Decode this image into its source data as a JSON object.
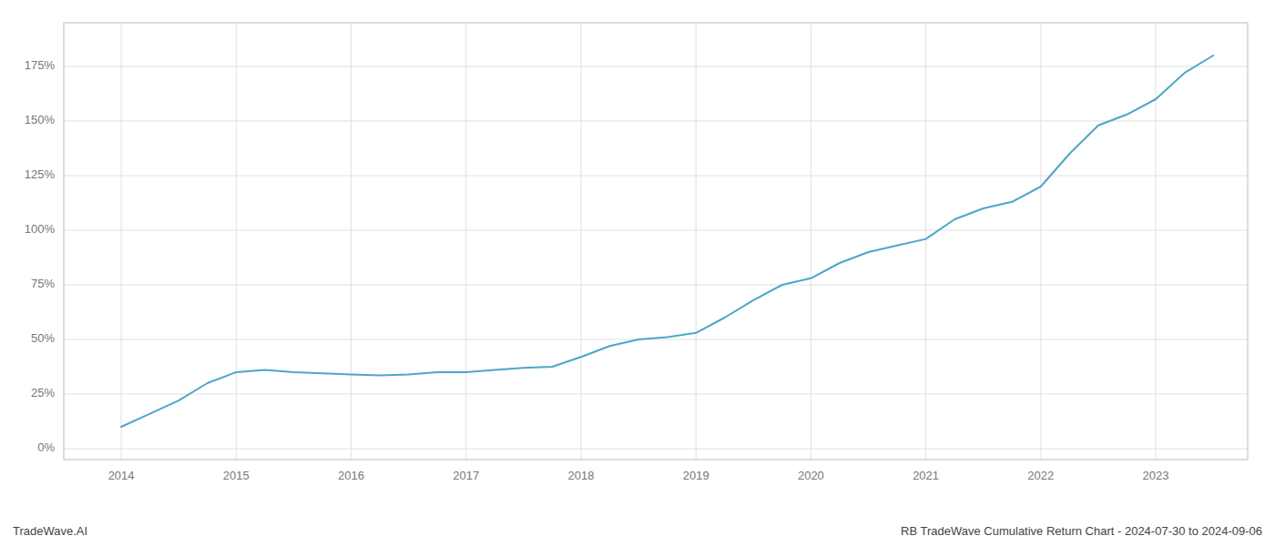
{
  "chart_data": {
    "type": "line",
    "annotations": [
      "TradeWave.AI",
      "RB TradeWave Cumulative Return Chart - 2024-07-30 to 2024-09-06"
    ],
    "x": [
      2014.0,
      2014.25,
      2014.5,
      2014.75,
      2015.0,
      2015.25,
      2015.5,
      2015.75,
      2016.0,
      2016.25,
      2016.5,
      2016.75,
      2017.0,
      2017.25,
      2017.5,
      2017.75,
      2018.0,
      2018.25,
      2018.5,
      2018.75,
      2019.0,
      2019.25,
      2019.5,
      2019.75,
      2020.0,
      2020.25,
      2020.5,
      2020.75,
      2021.0,
      2021.25,
      2021.5,
      2021.75,
      2022.0,
      2022.25,
      2022.5,
      2022.75,
      2023.0,
      2023.25,
      2023.5
    ],
    "values": [
      10,
      16,
      22,
      30,
      35,
      36,
      35,
      34.5,
      34,
      33.5,
      34,
      35,
      35,
      36,
      37,
      37.5,
      42,
      47,
      50,
      51,
      53,
      60,
      68,
      75,
      78,
      85,
      90,
      93,
      96,
      105,
      110,
      113,
      120,
      135,
      148,
      153,
      160,
      172,
      180
    ],
    "color": "#4da6c8",
    "xlim": [
      2013.5,
      2023.8
    ],
    "xticks": [
      2014,
      2015,
      2016,
      2017,
      2018,
      2019,
      2020,
      2021,
      2022,
      2023
    ],
    "ylim": [
      -5,
      195
    ],
    "yticks": [
      {
        "value": 0,
        "label": "0%"
      },
      {
        "value": 25,
        "label": "25%"
      },
      {
        "value": 50,
        "label": "50%"
      },
      {
        "value": 75,
        "label": "75%"
      },
      {
        "value": 100,
        "label": "100%"
      },
      {
        "value": 125,
        "label": "125%"
      },
      {
        "value": 150,
        "label": "150%"
      },
      {
        "value": 175,
        "label": "175%"
      }
    ],
    "grid": true
  }
}
